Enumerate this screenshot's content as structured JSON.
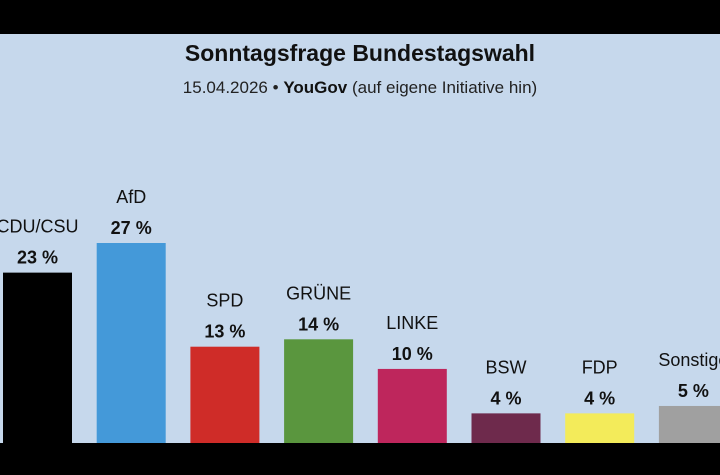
{
  "chart_data": {
    "type": "bar",
    "title": "Sonntagsfrage Bundestagswahl",
    "subtitle": {
      "date": "15.04.2026",
      "separator": "•",
      "pollster": "YouGov",
      "note": "(auf eigene Initiative hin)"
    },
    "categories": [
      "CDU/CSU",
      "AfD",
      "SPD",
      "GRÜNE",
      "LINKE",
      "BSW",
      "FDP",
      "Sonstige"
    ],
    "values": [
      23,
      27,
      13,
      14,
      10,
      4,
      4,
      5
    ],
    "value_labels": [
      "23 %",
      "27 %",
      "13 %",
      "14 %",
      "10 %",
      "4 %",
      "4 %",
      "5 %"
    ],
    "colors": [
      "#000000",
      "#4499d9",
      "#cf2c28",
      "#5a963e",
      "#be265c",
      "#6e2a4c",
      "#f3eb5a",
      "#a0a0a0"
    ],
    "xlabel": "",
    "ylabel": "",
    "ylim": [
      0,
      27
    ],
    "grid": false,
    "legend": "none"
  }
}
